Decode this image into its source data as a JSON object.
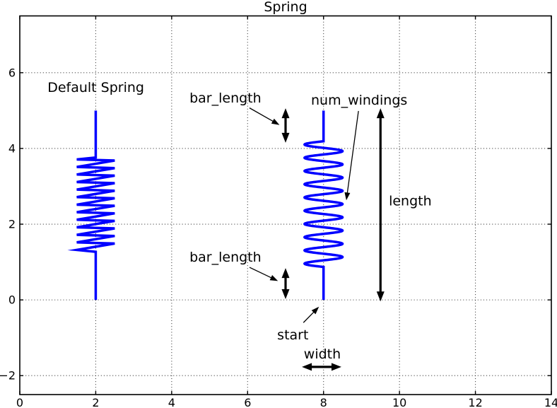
{
  "title": "Spring",
  "chart_data": {
    "type": "line",
    "title": "Spring",
    "xlabel": "",
    "ylabel": "",
    "xlim": [
      0,
      14
    ],
    "ylim": [
      -2.5,
      7.5
    ],
    "xticks": [
      0,
      2,
      4,
      6,
      8,
      10,
      12,
      14
    ],
    "xtick_labels": [
      "0",
      "2",
      "4",
      "6",
      "8",
      "10",
      "12",
      "14"
    ],
    "yticks": [
      -2,
      0,
      2,
      4,
      6
    ],
    "ytick_labels": [
      "−2",
      "0",
      "2",
      "4",
      "6"
    ],
    "grid_x": [
      2,
      4,
      6,
      8,
      10,
      12
    ],
    "grid_y": [
      -2,
      0,
      2,
      4,
      6
    ],
    "grid_style": "dotted",
    "legend": "none",
    "colors": {
      "spring": "#0000ff",
      "annotation": "#000000",
      "grid": "#333333",
      "axes": "#000000",
      "background": "#ffffff"
    },
    "springs": [
      {
        "name": "default-spring",
        "style": "zigzag",
        "x": 2,
        "bottom": 0,
        "top": 5.0,
        "coil_bottom": 1.27,
        "coil_top": 3.76,
        "width": 1.0,
        "num_windings": 12
      },
      {
        "name": "annotated-spring",
        "style": "sine",
        "x": 8,
        "bottom": 0,
        "top": 5.0,
        "coil_bottom": 0.87,
        "coil_top": 4.19,
        "width": 1.0,
        "num_windings": 9.5
      }
    ],
    "annotations": {
      "labels": [
        {
          "name": "default-spring-label",
          "text": "Default Spring",
          "x": 0.73,
          "y": 5.49
        },
        {
          "name": "bar-length-top-label",
          "text": "bar_length",
          "x": 4.47,
          "y": 5.21
        },
        {
          "name": "num-windings-label",
          "text": "num_windings",
          "x": 7.67,
          "y": 5.16
        },
        {
          "name": "length-label",
          "text": "length",
          "x": 9.72,
          "y": 2.5
        },
        {
          "name": "bar-length-bottom-label",
          "text": "bar_length",
          "x": 4.47,
          "y": 1.01
        },
        {
          "name": "start-label",
          "text": "start",
          "x": 6.78,
          "y": -1.04
        },
        {
          "name": "width-label",
          "text": "width",
          "x": 7.48,
          "y": -1.55
        }
      ],
      "thin_arrows": [
        {
          "name": "bar-length-top-arrow",
          "x1": 6.05,
          "y1": 5.07,
          "x2": 6.84,
          "y2": 4.62
        },
        {
          "name": "num-windings-arrow",
          "x1": 8.92,
          "y1": 4.99,
          "x2": 8.6,
          "y2": 2.63
        },
        {
          "name": "bar-length-bottom-arrow",
          "x1": 6.05,
          "y1": 0.86,
          "x2": 6.8,
          "y2": 0.5
        },
        {
          "name": "start-arrow",
          "x1": 7.47,
          "y1": -0.6,
          "x2": 7.88,
          "y2": -0.18
        }
      ],
      "double_arrows": [
        {
          "name": "bar-length-top-measure",
          "x1": 7.0,
          "y1": 4.15,
          "x2": 7.0,
          "y2": 5.06
        },
        {
          "name": "bar-length-bottom-measure",
          "x1": 7.0,
          "y1": 0.02,
          "x2": 7.0,
          "y2": 0.84
        },
        {
          "name": "length-measure",
          "x1": 9.5,
          "y1": -0.04,
          "x2": 9.5,
          "y2": 5.06
        },
        {
          "name": "width-measure",
          "x1": 7.43,
          "y1": -1.77,
          "x2": 8.47,
          "y2": -1.77
        }
      ]
    }
  }
}
